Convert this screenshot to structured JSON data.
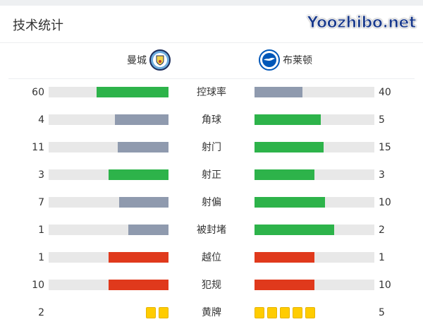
{
  "title": "技术统计",
  "home": {
    "name": "曼城",
    "badge": "man-city-crest"
  },
  "away": {
    "name": "布莱顿",
    "badge": "brighton-crest"
  },
  "colors": {
    "green": "#2db34a",
    "gray": "#8f9aae",
    "red": "#e0391c",
    "yellow": "#ffcc00",
    "track": "#e8e8e8"
  },
  "stats": [
    {
      "label": "控球率",
      "home": 60,
      "away": 40,
      "home_color": "green",
      "away_color": "gray"
    },
    {
      "label": "角球",
      "home": 4,
      "away": 5,
      "home_color": "gray",
      "away_color": "green"
    },
    {
      "label": "射门",
      "home": 11,
      "away": 15,
      "home_color": "gray",
      "away_color": "green"
    },
    {
      "label": "射正",
      "home": 3,
      "away": 3,
      "home_color": "green",
      "away_color": "green"
    },
    {
      "label": "射偏",
      "home": 7,
      "away": 10,
      "home_color": "gray",
      "away_color": "green"
    },
    {
      "label": "被封堵",
      "home": 1,
      "away": 2,
      "home_color": "gray",
      "away_color": "green"
    },
    {
      "label": "越位",
      "home": 1,
      "away": 1,
      "home_color": "red",
      "away_color": "red"
    },
    {
      "label": "犯规",
      "home": 10,
      "away": 10,
      "home_color": "red",
      "away_color": "red"
    },
    {
      "label": "黄牌",
      "home": 2,
      "away": 5,
      "type": "cards"
    }
  ],
  "watermark": "Yoozhibo.net"
}
